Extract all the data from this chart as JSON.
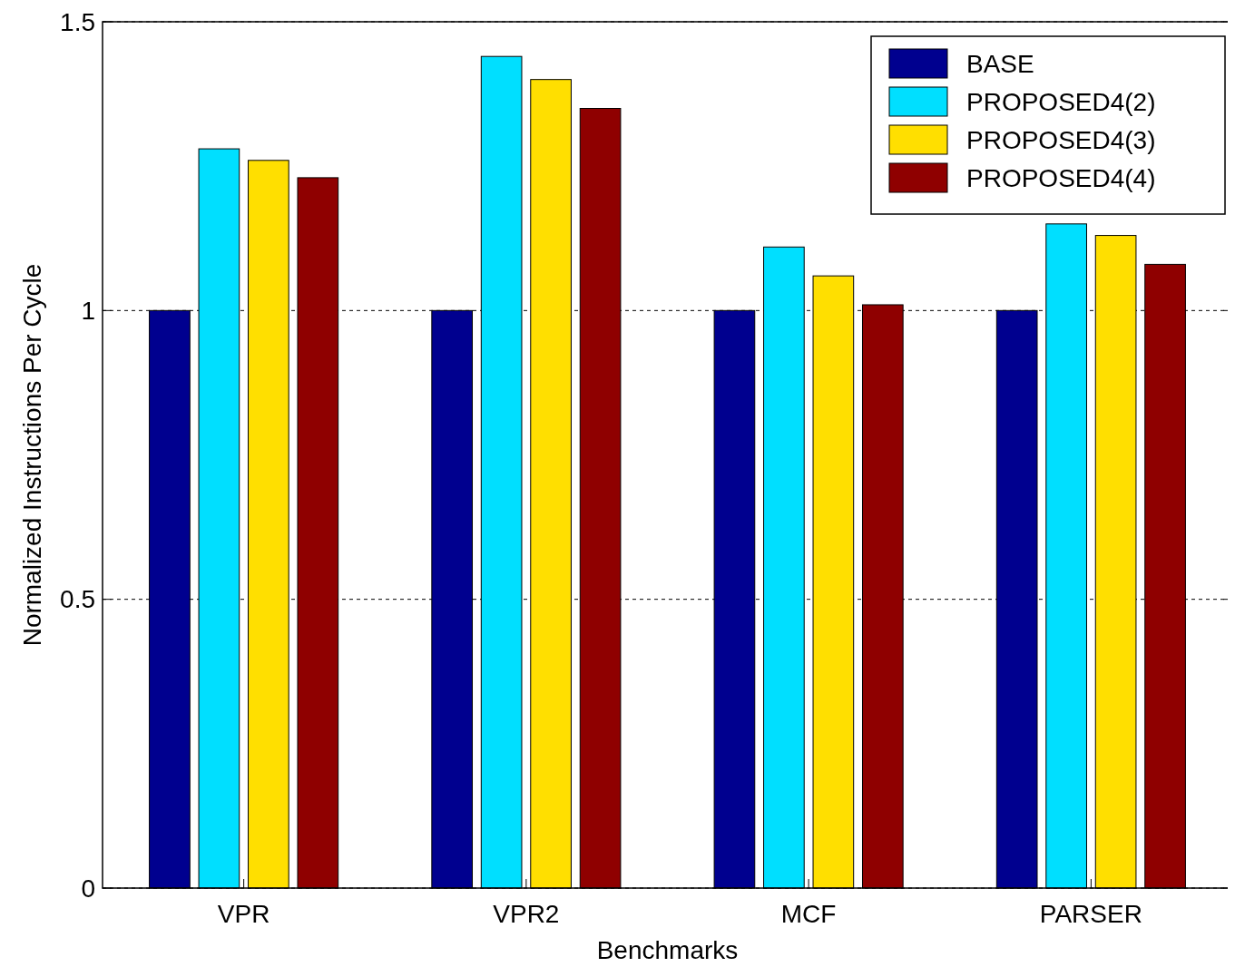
{
  "chart_data": {
    "type": "bar",
    "xlabel": "Benchmarks",
    "ylabel": "Normalized Instructions Per Cycle",
    "categories": [
      "VPR",
      "VPR2",
      "MCF",
      "PARSER"
    ],
    "series": [
      {
        "name": "BASE",
        "color": "#00008f",
        "values": [
          1,
          1,
          1,
          1
        ]
      },
      {
        "name": "PROPOSED4(2)",
        "color": "#00dfff",
        "values": [
          1.28,
          1.44,
          1.11,
          1.15
        ]
      },
      {
        "name": "PROPOSED4(3)",
        "color": "#ffdf00",
        "values": [
          1.26,
          1.4,
          1.06,
          1.13
        ]
      },
      {
        "name": "PROPOSED4(4)",
        "color": "#8f0000",
        "values": [
          1.23,
          1.35,
          1.01,
          1.08
        ]
      }
    ],
    "ylim": [
      0,
      1.5
    ],
    "yticks": [
      0,
      0.5,
      1,
      1.5
    ],
    "grid": "y",
    "legend": "top right"
  }
}
